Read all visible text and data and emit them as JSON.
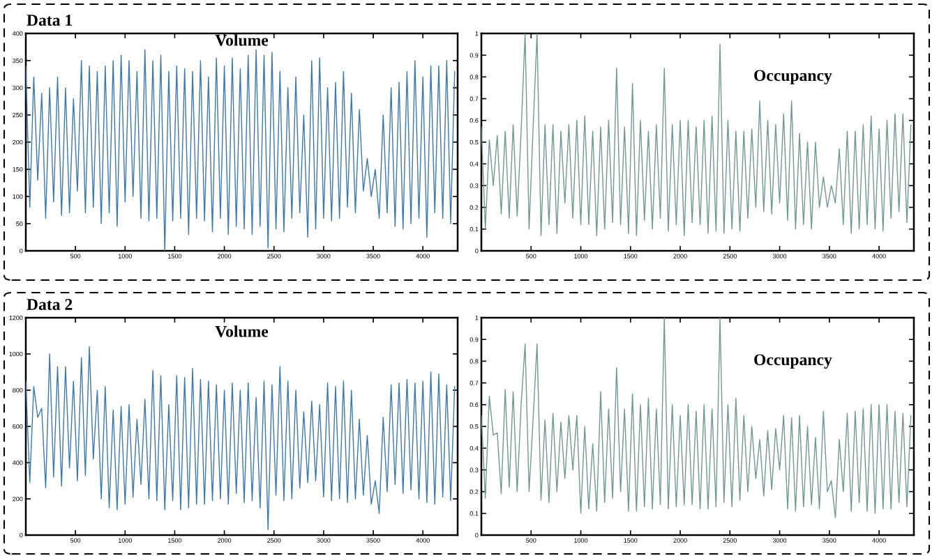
{
  "chart_data": [
    {
      "type": "line",
      "title": "Data 1",
      "annotations": [
        "Volume"
      ],
      "x": [
        0,
        40,
        80,
        120,
        160,
        200,
        240,
        280,
        320,
        360,
        400,
        440,
        480,
        520,
        560,
        600,
        640,
        680,
        720,
        760,
        800,
        840,
        880,
        920,
        960,
        1000,
        1040,
        1080,
        1120,
        1160,
        1200,
        1240,
        1280,
        1320,
        1360,
        1400,
        1440,
        1480,
        1520,
        1560,
        1600,
        1640,
        1680,
        1720,
        1760,
        1800,
        1840,
        1880,
        1920,
        1960,
        2000,
        2040,
        2080,
        2120,
        2160,
        2200,
        2240,
        2280,
        2320,
        2360,
        2400,
        2440,
        2480,
        2520,
        2560,
        2600,
        2640,
        2680,
        2720,
        2760,
        2800,
        2840,
        2880,
        2920,
        2960,
        3000,
        3040,
        3080,
        3120,
        3160,
        3200,
        3240,
        3280,
        3320,
        3360,
        3400,
        3440,
        3480,
        3520,
        3560,
        3600,
        3640,
        3680,
        3720,
        3760,
        3800,
        3840,
        3880,
        3920,
        3960,
        4000,
        4040,
        4080,
        4120,
        4160,
        4200,
        4240,
        4280,
        4320
      ],
      "series": [
        {
          "color": "#3a78b0",
          "values": [
            340,
            80,
            320,
            130,
            290,
            60,
            300,
            90,
            320,
            65,
            300,
            70,
            280,
            110,
            350,
            70,
            340,
            80,
            330,
            50,
            340,
            70,
            350,
            45,
            360,
            90,
            350,
            100,
            330,
            60,
            370,
            55,
            350,
            60,
            360,
            0,
            330,
            55,
            340,
            60,
            335,
            30,
            330,
            60,
            350,
            55,
            320,
            35,
            355,
            60,
            340,
            30,
            355,
            45,
            335,
            40,
            360,
            30,
            370,
            45,
            360,
            5,
            365,
            40,
            330,
            35,
            300,
            60,
            320,
            70,
            250,
            25,
            350,
            40,
            355,
            60,
            300,
            55,
            310,
            60,
            330,
            80,
            290,
            70,
            260,
            110,
            170,
            100,
            150,
            60,
            250,
            70,
            300,
            45,
            310,
            40,
            330,
            50,
            350,
            60,
            320,
            25,
            340,
            70,
            340,
            60,
            350,
            50,
            330
          ]
        }
      ],
      "xlim": [
        0,
        4350
      ],
      "ylim": [
        0,
        400
      ],
      "xticks": [
        500,
        1000,
        1500,
        2000,
        2500,
        3000,
        3500,
        4000
      ],
      "yticks": [
        0,
        50,
        100,
        150,
        200,
        250,
        300,
        350,
        400
      ],
      "grid": false
    },
    {
      "type": "line",
      "annotations": [
        "Occupancy"
      ],
      "x": [
        0,
        40,
        80,
        120,
        160,
        200,
        240,
        280,
        320,
        360,
        400,
        440,
        480,
        520,
        560,
        600,
        640,
        680,
        720,
        760,
        800,
        840,
        880,
        920,
        960,
        1000,
        1040,
        1080,
        1120,
        1160,
        1200,
        1240,
        1280,
        1320,
        1360,
        1400,
        1440,
        1480,
        1520,
        1560,
        1600,
        1640,
        1680,
        1720,
        1760,
        1800,
        1840,
        1880,
        1920,
        1960,
        2000,
        2040,
        2080,
        2120,
        2160,
        2200,
        2240,
        2280,
        2320,
        2360,
        2400,
        2440,
        2480,
        2520,
        2560,
        2600,
        2640,
        2680,
        2720,
        2760,
        2800,
        2840,
        2880,
        2920,
        2960,
        3000,
        3040,
        3080,
        3120,
        3160,
        3200,
        3240,
        3280,
        3320,
        3360,
        3400,
        3440,
        3480,
        3520,
        3560,
        3600,
        3640,
        3680,
        3720,
        3760,
        3800,
        3840,
        3880,
        3920,
        3960,
        4000,
        4040,
        4080,
        4120,
        4160,
        4200,
        4240,
        4280,
        4320
      ],
      "series": [
        {
          "color": "#6f9892",
          "values": [
            0.57,
            0.1,
            0.51,
            0.3,
            0.53,
            0.17,
            0.55,
            0.15,
            0.58,
            0.16,
            0.55,
            1.0,
            0.1,
            0.56,
            1.0,
            0.07,
            0.58,
            0.12,
            0.58,
            0.08,
            0.55,
            0.22,
            0.58,
            0.15,
            0.6,
            0.12,
            0.62,
            0.12,
            0.55,
            0.07,
            0.57,
            0.1,
            0.6,
            0.13,
            0.84,
            0.12,
            0.57,
            0.08,
            0.77,
            0.07,
            0.6,
            0.14,
            0.55,
            0.1,
            0.58,
            0.15,
            0.84,
            0.09,
            0.58,
            0.12,
            0.6,
            0.07,
            0.6,
            0.13,
            0.57,
            0.12,
            0.6,
            0.08,
            0.62,
            0.09,
            0.95,
            0.08,
            0.6,
            0.1,
            0.55,
            0.09,
            0.55,
            0.15,
            0.56,
            0.2,
            0.69,
            0.18,
            0.6,
            0.17,
            0.58,
            0.22,
            0.63,
            0.14,
            0.69,
            0.1,
            0.54,
            0.12,
            0.5,
            0.1,
            0.5,
            0.2,
            0.34,
            0.2,
            0.3,
            0.22,
            0.47,
            0.12,
            0.55,
            0.08,
            0.55,
            0.1,
            0.58,
            0.12,
            0.62,
            0.1,
            0.56,
            0.09,
            0.6,
            0.15,
            0.63,
            0.18,
            0.63,
            0.13,
            0.58
          ]
        }
      ],
      "xlim": [
        0,
        4350
      ],
      "ylim": [
        0,
        1
      ],
      "xticks": [
        500,
        1000,
        1500,
        2000,
        2500,
        3000,
        3500,
        4000
      ],
      "yticks": [
        0,
        0.1,
        0.2,
        0.3,
        0.4,
        0.5,
        0.6,
        0.7,
        0.8,
        0.9,
        1
      ],
      "grid": false
    },
    {
      "type": "line",
      "title": "Data 2",
      "annotations": [
        "Volume"
      ],
      "x": [
        0,
        40,
        80,
        120,
        160,
        200,
        240,
        280,
        320,
        360,
        400,
        440,
        480,
        520,
        560,
        600,
        640,
        680,
        720,
        760,
        800,
        840,
        880,
        920,
        960,
        1000,
        1040,
        1080,
        1120,
        1160,
        1200,
        1240,
        1280,
        1320,
        1360,
        1400,
        1440,
        1480,
        1520,
        1560,
        1600,
        1640,
        1680,
        1720,
        1760,
        1800,
        1840,
        1880,
        1920,
        1960,
        2000,
        2040,
        2080,
        2120,
        2160,
        2200,
        2240,
        2280,
        2320,
        2360,
        2400,
        2440,
        2480,
        2520,
        2560,
        2600,
        2640,
        2680,
        2720,
        2760,
        2800,
        2840,
        2880,
        2920,
        2960,
        3000,
        3040,
        3080,
        3120,
        3160,
        3200,
        3240,
        3280,
        3320,
        3360,
        3400,
        3440,
        3480,
        3520,
        3560,
        3600,
        3640,
        3680,
        3720,
        3760,
        3800,
        3840,
        3880,
        3920,
        3960,
        4000,
        4040,
        4080,
        4120,
        4160,
        4200,
        4240,
        4280,
        4320
      ],
      "series": [
        {
          "color": "#3a78b0",
          "values": [
            850,
            290,
            820,
            650,
            700,
            260,
            1000,
            320,
            930,
            270,
            930,
            370,
            850,
            300,
            980,
            330,
            1040,
            420,
            800,
            200,
            820,
            150,
            690,
            140,
            710,
            170,
            720,
            210,
            640,
            280,
            750,
            200,
            910,
            190,
            880,
            140,
            720,
            190,
            880,
            140,
            870,
            150,
            920,
            170,
            860,
            170,
            850,
            190,
            830,
            200,
            800,
            170,
            840,
            230,
            800,
            180,
            840,
            190,
            760,
            150,
            850,
            30,
            830,
            220,
            930,
            190,
            850,
            200,
            800,
            260,
            680,
            290,
            740,
            300,
            720,
            210,
            840,
            190,
            820,
            200,
            850,
            180,
            800,
            200,
            640,
            220,
            550,
            170,
            300,
            120,
            650,
            240,
            830,
            280,
            840,
            230,
            860,
            250,
            840,
            200,
            850,
            180,
            900,
            170,
            890,
            210,
            830,
            190,
            820
          ]
        }
      ],
      "xlim": [
        0,
        4350
      ],
      "ylim": [
        0,
        1200
      ],
      "xticks": [
        500,
        1000,
        1500,
        2000,
        2500,
        3000,
        3500,
        4000
      ],
      "yticks": [
        0,
        200,
        400,
        600,
        800,
        1000,
        1200
      ],
      "grid": false
    },
    {
      "type": "line",
      "annotations": [
        "Occupancy"
      ],
      "x": [
        0,
        40,
        80,
        120,
        160,
        200,
        240,
        280,
        320,
        360,
        400,
        440,
        480,
        520,
        560,
        600,
        640,
        680,
        720,
        760,
        800,
        840,
        880,
        920,
        960,
        1000,
        1040,
        1080,
        1120,
        1160,
        1200,
        1240,
        1280,
        1320,
        1360,
        1400,
        1440,
        1480,
        1520,
        1560,
        1600,
        1640,
        1680,
        1720,
        1760,
        1800,
        1840,
        1880,
        1920,
        1960,
        2000,
        2040,
        2080,
        2120,
        2160,
        2200,
        2240,
        2280,
        2320,
        2360,
        2400,
        2440,
        2480,
        2520,
        2560,
        2600,
        2640,
        2680,
        2720,
        2760,
        2800,
        2840,
        2880,
        2920,
        2960,
        3000,
        3040,
        3080,
        3120,
        3160,
        3200,
        3240,
        3280,
        3320,
        3360,
        3400,
        3440,
        3480,
        3520,
        3560,
        3600,
        3640,
        3680,
        3720,
        3760,
        3800,
        3840,
        3880,
        3920,
        3960,
        4000,
        4040,
        4080,
        4120,
        4160,
        4200,
        4240,
        4280,
        4320
      ],
      "series": [
        {
          "color": "#6f9892",
          "values": [
            0.55,
            0.17,
            0.64,
            0.46,
            0.47,
            0.19,
            0.67,
            0.22,
            0.66,
            0.2,
            0.6,
            0.88,
            0.2,
            0.53,
            0.88,
            0.16,
            0.53,
            0.15,
            0.56,
            0.2,
            0.52,
            0.26,
            0.55,
            0.3,
            0.55,
            0.1,
            0.5,
            0.12,
            0.42,
            0.11,
            0.66,
            0.15,
            0.58,
            0.17,
            0.77,
            0.2,
            0.58,
            0.11,
            0.65,
            0.11,
            0.6,
            0.13,
            0.63,
            0.12,
            0.58,
            0.14,
            1.0,
            0.12,
            0.6,
            0.13,
            0.55,
            0.14,
            0.6,
            0.14,
            0.57,
            0.12,
            0.6,
            0.12,
            0.58,
            0.13,
            1.0,
            0.15,
            0.6,
            0.13,
            0.63,
            0.16,
            0.55,
            0.2,
            0.5,
            0.26,
            0.44,
            0.18,
            0.48,
            0.21,
            0.49,
            0.3,
            0.55,
            0.12,
            0.54,
            0.11,
            0.55,
            0.13,
            0.5,
            0.14,
            0.45,
            0.12,
            0.57,
            0.2,
            0.25,
            0.08,
            0.44,
            0.2,
            0.56,
            0.11,
            0.57,
            0.15,
            0.58,
            0.11,
            0.6,
            0.1,
            0.6,
            0.12,
            0.6,
            0.12,
            0.57,
            0.15,
            0.56,
            0.13,
            0.55
          ]
        }
      ],
      "xlim": [
        0,
        4350
      ],
      "ylim": [
        0,
        1
      ],
      "xticks": [
        500,
        1000,
        1500,
        2000,
        2500,
        3000,
        3500,
        4000
      ],
      "yticks": [
        0,
        0.1,
        0.2,
        0.3,
        0.4,
        0.5,
        0.6,
        0.7,
        0.8,
        0.9,
        1
      ],
      "grid": false
    }
  ]
}
